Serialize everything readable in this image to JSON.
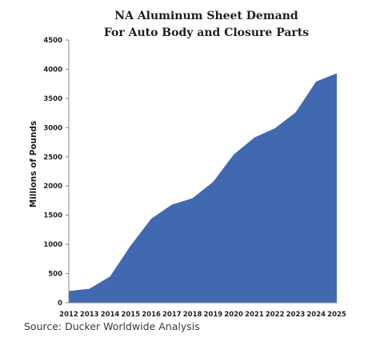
{
  "chart_data": {
    "type": "area",
    "title": [
      "NA Aluminum Sheet Demand",
      "For Auto Body and Closure Parts"
    ],
    "ylabel": "Millions of Pounds",
    "xlabel": "",
    "x": [
      "2012",
      "2013",
      "2014",
      "2015",
      "2016",
      "2017",
      "2018",
      "2019",
      "2020",
      "2021",
      "2022",
      "2023",
      "2024",
      "2025"
    ],
    "values": [
      200,
      240,
      450,
      980,
      1440,
      1680,
      1790,
      2070,
      2540,
      2830,
      2990,
      3260,
      3790,
      3930
    ],
    "ylim": [
      0,
      4500
    ],
    "yticks": [
      "0",
      "500",
      "1000",
      "1500",
      "2000",
      "2500",
      "3000",
      "3500",
      "4000",
      "4500"
    ],
    "grid": false,
    "legend": "none",
    "fill_color": "#4169b0"
  },
  "source": "Source: Ducker Worldwide Analysis"
}
